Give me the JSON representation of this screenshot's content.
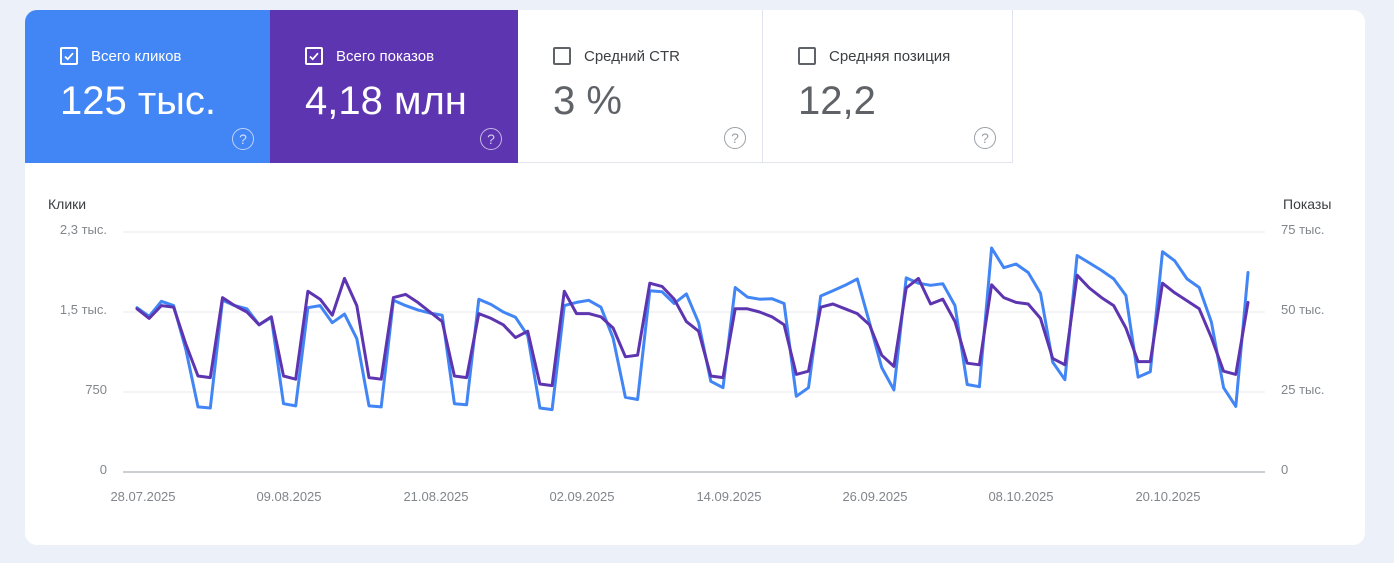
{
  "icons": {
    "help": "?"
  },
  "cards": [
    {
      "label": "Всего кликов",
      "value": "125 тыс.",
      "checked": true,
      "color": "#4285f4"
    },
    {
      "label": "Всего показов",
      "value": "4,18 млн",
      "checked": true,
      "color": "#5e35b1"
    },
    {
      "label": "Средний CTR",
      "value": "3 %",
      "checked": false
    },
    {
      "label": "Средняя позиция",
      "value": "12,2",
      "checked": false
    }
  ],
  "chart_data": {
    "type": "line",
    "x_axis_labels": [
      "28.07.2025",
      "09.08.2025",
      "21.08.2025",
      "02.09.2025",
      "14.09.2025",
      "26.09.2025",
      "08.10.2025",
      "20.10.2025"
    ],
    "left_axis": {
      "title": "Клики",
      "ticks": [
        "2,3 тыс.",
        "1,5 тыс.",
        "750",
        "0"
      ],
      "tick_values": [
        2250,
        1500,
        750,
        0
      ],
      "max": 2250
    },
    "right_axis": {
      "title": "Показы",
      "ticks": [
        "75 тыс.",
        "50 тыс.",
        "25 тыс.",
        "0"
      ],
      "tick_values": [
        75000,
        50000,
        25000,
        0
      ],
      "max": 75000
    },
    "grid": true,
    "legend_position": "none",
    "series": [
      {
        "name": "Всего кликов",
        "axis": "left",
        "color": "#4285f4",
        "values": [
          1540,
          1460,
          1600,
          1560,
          1150,
          610,
          600,
          1610,
          1560,
          1530,
          1380,
          1450,
          640,
          620,
          1540,
          1560,
          1400,
          1480,
          1250,
          620,
          610,
          1610,
          1560,
          1520,
          1490,
          1470,
          640,
          630,
          1620,
          1570,
          1500,
          1450,
          1280,
          600,
          585,
          1560,
          1590,
          1610,
          1545,
          1255,
          700,
          680,
          1700,
          1690,
          1580,
          1670,
          1400,
          850,
          790,
          1730,
          1640,
          1620,
          1625,
          1580,
          710,
          790,
          1650,
          1700,
          1750,
          1810,
          1400,
          980,
          770,
          1820,
          1770,
          1750,
          1765,
          1560,
          820,
          800,
          2100,
          1915,
          1950,
          1870,
          1675,
          1030,
          865,
          2030,
          1960,
          1890,
          1810,
          1655,
          890,
          940,
          2065,
          1980,
          1810,
          1730,
          1405,
          790,
          615,
          1870
        ]
      },
      {
        "name": "Всего показов",
        "axis": "right",
        "color": "#5e35b1",
        "values": [
          51000,
          48000,
          52000,
          51500,
          40000,
          30000,
          29500,
          54500,
          52000,
          50000,
          46000,
          48500,
          30000,
          29000,
          56500,
          54000,
          49000,
          60500,
          52000,
          29500,
          29000,
          54500,
          55500,
          53000,
          50000,
          47000,
          30000,
          29500,
          49500,
          48000,
          46000,
          42000,
          44000,
          27500,
          27000,
          56500,
          49500,
          49500,
          48500,
          45000,
          36000,
          36500,
          59000,
          58000,
          54000,
          47000,
          44000,
          30000,
          29500,
          51000,
          51000,
          50000,
          48500,
          46000,
          30500,
          31500,
          51500,
          52500,
          51000,
          49500,
          46000,
          36500,
          33000,
          57500,
          60500,
          52500,
          54000,
          47000,
          34000,
          33500,
          58500,
          54500,
          53000,
          52500,
          48000,
          35500,
          33500,
          61500,
          57500,
          54500,
          52000,
          45000,
          34500,
          34500,
          59000,
          56000,
          53500,
          51000,
          42000,
          31500,
          30500,
          53000
        ]
      }
    ]
  }
}
